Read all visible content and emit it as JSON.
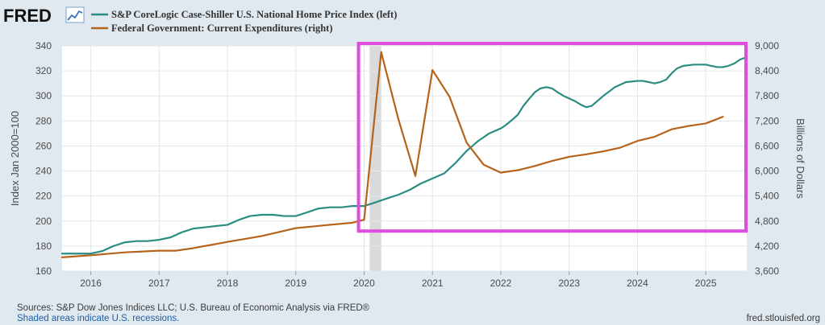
{
  "header": {
    "logo_text": "FRED",
    "logo_icon": "line-chart-icon"
  },
  "chart_data": {
    "type": "line",
    "title": "",
    "x_range": [
      2015.58,
      2025.6
    ],
    "x_ticks": [
      "2016",
      "2017",
      "2018",
      "2019",
      "2020",
      "2021",
      "2022",
      "2023",
      "2024",
      "2025"
    ],
    "y_left": {
      "label": "Index Jan 2000=100",
      "range": [
        160,
        340
      ],
      "ticks": [
        "160",
        "180",
        "200",
        "220",
        "240",
        "260",
        "280",
        "300",
        "320",
        "340"
      ]
    },
    "y_right": {
      "label": "Billions of Dollars",
      "range": [
        3600,
        9000
      ],
      "ticks": [
        "3,600",
        "4,200",
        "4,800",
        "5,400",
        "6,000",
        "6,600",
        "7,200",
        "7,800",
        "8,400",
        "9,000"
      ]
    },
    "series": [
      {
        "name": "S&P CoreLogic Case-Shiller U.S. National Home Price Index (left)",
        "axis": "left",
        "color": "#2b8c83",
        "x": [
          2015.58,
          2015.83,
          2016.0,
          2016.17,
          2016.33,
          2016.5,
          2016.67,
          2016.83,
          2017.0,
          2017.17,
          2017.33,
          2017.5,
          2017.67,
          2017.83,
          2018.0,
          2018.17,
          2018.33,
          2018.5,
          2018.67,
          2018.83,
          2019.0,
          2019.17,
          2019.33,
          2019.5,
          2019.67,
          2019.83,
          2020.0,
          2020.17,
          2020.33,
          2020.5,
          2020.67,
          2020.83,
          2021.0,
          2021.17,
          2021.33,
          2021.5,
          2021.67,
          2021.83,
          2022.0,
          2022.08,
          2022.17,
          2022.25,
          2022.33,
          2022.42,
          2022.5,
          2022.58,
          2022.67,
          2022.75,
          2022.83,
          2022.92,
          2023.0,
          2023.08,
          2023.17,
          2023.25,
          2023.33,
          2023.5,
          2023.67,
          2023.75,
          2023.83,
          2024.0,
          2024.08,
          2024.17,
          2024.25,
          2024.33,
          2024.42,
          2024.5,
          2024.58,
          2024.67,
          2024.83,
          2025.0,
          2025.08,
          2025.17,
          2025.25,
          2025.33,
          2025.42,
          2025.5,
          2025.6
        ],
        "values": [
          174,
          174,
          174,
          176,
          180,
          183,
          184,
          184,
          185,
          187,
          191,
          194,
          195,
          196,
          197,
          201,
          204,
          205,
          205,
          204,
          204,
          207,
          210,
          211,
          211,
          212,
          212,
          215,
          218,
          221,
          225,
          230,
          234,
          238,
          246,
          256,
          264,
          270,
          274,
          277,
          281,
          285,
          292,
          298,
          303,
          306,
          307,
          306,
          303,
          300,
          298,
          296,
          293,
          291,
          292,
          300,
          307,
          309,
          311,
          312,
          312,
          311,
          310,
          311,
          313,
          318,
          322,
          324,
          325,
          325,
          324,
          323,
          323,
          324,
          326,
          329,
          331
        ]
      },
      {
        "name": "Federal Government: Current Expenditures (right)",
        "axis": "right",
        "color": "#b5631b",
        "x": [
          2015.58,
          2016.0,
          2016.5,
          2017.0,
          2017.25,
          2017.5,
          2018.0,
          2018.5,
          2019.0,
          2019.5,
          2019.83,
          2020.0,
          2020.25,
          2020.5,
          2020.75,
          2021.0,
          2021.25,
          2021.5,
          2021.75,
          2022.0,
          2022.25,
          2022.5,
          2022.75,
          2023.0,
          2023.25,
          2023.5,
          2023.75,
          2024.0,
          2024.25,
          2024.5,
          2024.75,
          2025.0,
          2025.25
        ],
        "values": [
          3930,
          3980,
          4050,
          4090,
          4090,
          4150,
          4300,
          4440,
          4630,
          4710,
          4760,
          4830,
          8850,
          7250,
          5880,
          8420,
          7780,
          6680,
          6150,
          5960,
          6020,
          6120,
          6240,
          6340,
          6400,
          6470,
          6560,
          6720,
          6820,
          7000,
          7080,
          7140,
          7300
        ]
      }
    ],
    "recessions": [
      [
        2020.08,
        2020.25
      ]
    ],
    "highlight_box": {
      "x_start": 2019.93,
      "x_end": 2025.6,
      "y_top_right": 9000,
      "y_bottom_right": 4560,
      "color": "#e04be0"
    }
  },
  "footer": {
    "sources": "Sources: S&P Dow Jones Indices LLC; U.S. Bureau of Economic Analysis via FRED®",
    "recession_note": "Shaded areas indicate U.S. recessions.",
    "site": "fred.stlouisfed.org"
  }
}
